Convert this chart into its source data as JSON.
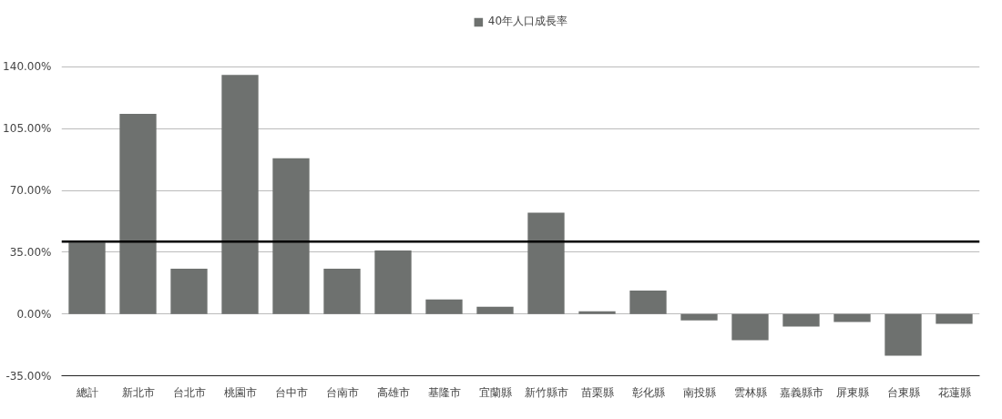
{
  "chart_data": {
    "type": "bar",
    "categories": [
      "總計",
      "新北市",
      "台北市",
      "桃園市",
      "台中市",
      "台南市",
      "高雄市",
      "基隆市",
      "宜蘭縣",
      "新竹縣市",
      "苗栗縣",
      "彰化縣",
      "南投縣",
      "雲林縣",
      "嘉義縣市",
      "屏東縣",
      "台東縣",
      "花蓮縣"
    ],
    "series": [
      {
        "name": "40年人口成長率",
        "color": "#6e716f",
        "values": [
          40.5,
          113.3,
          25.6,
          135.4,
          88.2,
          25.6,
          35.9,
          8.2,
          4.1,
          57.4,
          1.5,
          13.3,
          -3.6,
          -14.9,
          -7.2,
          -4.6,
          -23.6,
          -5.6
        ]
      }
    ],
    "ylim": [
      -35,
      140
    ],
    "yticks": [
      {
        "value": -35,
        "label": "-35.00%"
      },
      {
        "value": 0,
        "label": "0.00%"
      },
      {
        "value": 35,
        "label": "35.00%"
      },
      {
        "value": 70,
        "label": "70.00%"
      },
      {
        "value": 105,
        "label": "105.00%"
      },
      {
        "value": 140,
        "label": "140.00%"
      }
    ],
    "ref_lines": [
      {
        "axis": "y",
        "value": 41,
        "color": "#000000"
      }
    ],
    "grid": "y",
    "legend": "top"
  }
}
